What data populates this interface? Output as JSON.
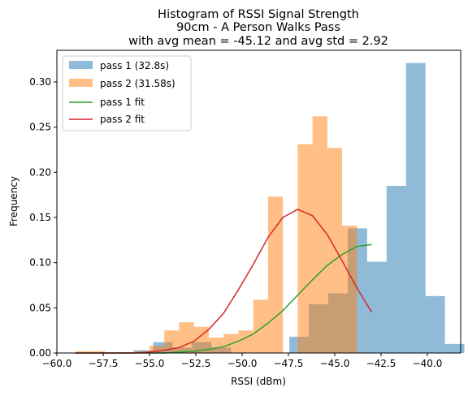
{
  "chart_data": {
    "type": "histogram",
    "title_lines": [
      "Histogram of RSSI Signal Strength",
      "90cm - A Person Walks Pass",
      "with avg mean = -45.12 and avg std = 2.92"
    ],
    "xlabel": "RSSI (dBm)",
    "ylabel": "Frequency",
    "xlim": [
      -60,
      -38.2
    ],
    "ylim": [
      0,
      0.335
    ],
    "xticks": [
      -60,
      -57.5,
      -55,
      -52.5,
      -50,
      -47.5,
      -45,
      -42.5,
      -40
    ],
    "xtick_labels": [
      "−60.0",
      "−57.5",
      "−55.0",
      "−52.5",
      "−50.0",
      "−47.5",
      "−45.0",
      "−42.5",
      "−40.0"
    ],
    "yticks": [
      0,
      0.05,
      0.1,
      0.15,
      0.2,
      0.25,
      0.3
    ],
    "ytick_labels": [
      "0.00",
      "0.05",
      "0.10",
      "0.15",
      "0.20",
      "0.25",
      "0.30"
    ],
    "legend_position": "top-left",
    "grid": false,
    "series": [
      {
        "name": "pass 1 (32.8s)",
        "kind": "bars",
        "color": "#1f77b4",
        "opacity": 0.5,
        "bin_width": 1.05,
        "bin_edges_start": [
          -59.0,
          -57.95,
          -56.9,
          -55.85,
          -54.8,
          -53.75,
          -52.7,
          -51.65,
          -50.6,
          -49.55,
          -48.5,
          -47.45,
          -46.4,
          -45.35,
          -44.3,
          -43.25,
          -42.2,
          -41.15,
          -40.1,
          -39.05
        ],
        "values": [
          0.0,
          0.0,
          0.0,
          0.003,
          0.012,
          0.006,
          0.012,
          0.006,
          0.0,
          0.0,
          0.0,
          0.018,
          0.054,
          0.066,
          0.138,
          0.101,
          0.185,
          0.321,
          0.063,
          0.01
        ]
      },
      {
        "name": "pass 2 (31.58s)",
        "kind": "bars",
        "color": "#ff7f0e",
        "opacity": 0.5,
        "bin_width": 0.8,
        "bin_edges_start": [
          -59.0,
          -58.2,
          -57.4,
          -56.6,
          -55.8,
          -55.0,
          -54.2,
          -53.4,
          -52.6,
          -51.8,
          -51.0,
          -50.2,
          -49.4,
          -48.6,
          -47.8,
          -47.0,
          -46.2,
          -45.4,
          -44.6,
          -43.8
        ],
        "values": [
          0.002,
          0.002,
          0.0,
          0.001,
          0.002,
          0.008,
          0.025,
          0.034,
          0.029,
          0.017,
          0.021,
          0.025,
          0.059,
          0.173,
          0.0,
          0.231,
          0.262,
          0.227,
          0.141,
          0.0
        ]
      },
      {
        "name": "pass 1 fit",
        "kind": "line",
        "color": "#2ca02c",
        "x": [
          -59.0,
          -58.2,
          -57.4,
          -56.6,
          -55.8,
          -55.0,
          -54.2,
          -53.4,
          -52.6,
          -51.8,
          -51.0,
          -50.2,
          -49.4,
          -48.6,
          -47.8,
          -47.0,
          -46.2,
          -45.4,
          -44.6,
          -43.8,
          -43.0
        ],
        "y": [
          0.0,
          0.0,
          0.0,
          0.0,
          0.0,
          0.0,
          0.0,
          0.001,
          0.002,
          0.004,
          0.007,
          0.013,
          0.021,
          0.033,
          0.047,
          0.064,
          0.081,
          0.097,
          0.109,
          0.118,
          0.12
        ]
      },
      {
        "name": "pass 2 fit",
        "kind": "line",
        "color": "#d62728",
        "x": [
          -59.0,
          -58.2,
          -57.4,
          -56.6,
          -55.8,
          -55.0,
          -54.2,
          -53.4,
          -52.6,
          -51.8,
          -51.0,
          -50.2,
          -49.4,
          -48.6,
          -47.8,
          -47.0,
          -46.2,
          -45.4,
          -44.6,
          -43.8,
          -43.0
        ],
        "y": [
          0.0,
          0.0,
          0.0,
          0.0,
          0.0,
          0.001,
          0.003,
          0.006,
          0.013,
          0.026,
          0.044,
          0.07,
          0.098,
          0.128,
          0.15,
          0.159,
          0.152,
          0.131,
          0.102,
          0.072,
          0.045
        ]
      }
    ]
  }
}
